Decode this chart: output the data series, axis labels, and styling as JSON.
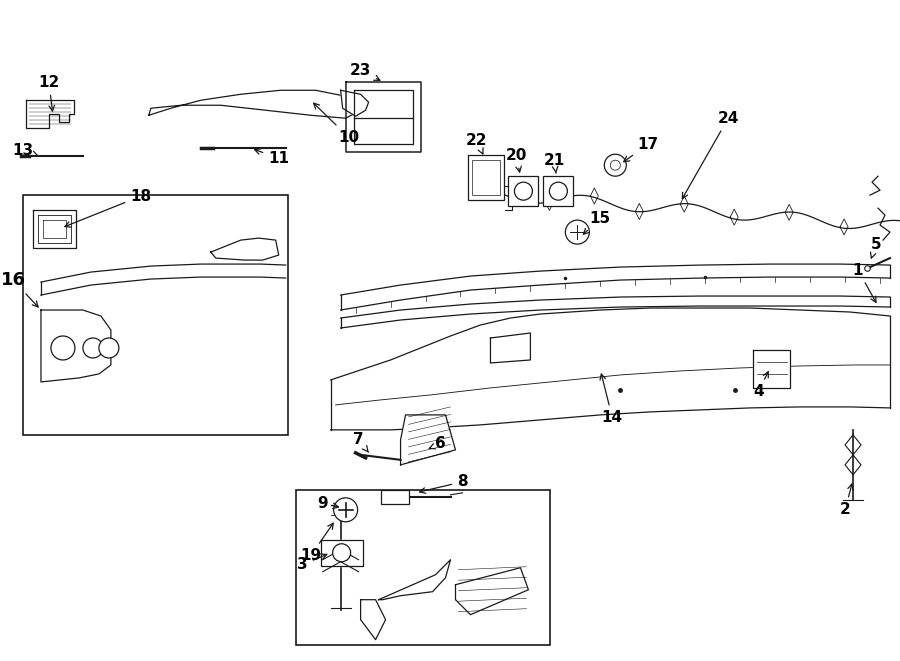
{
  "bg_color": "#ffffff",
  "line_color": "#1a1a1a",
  "label_color": "#000000",
  "fig_width": 9.0,
  "fig_height": 6.61,
  "dpi": 100,
  "lw": 0.9
}
